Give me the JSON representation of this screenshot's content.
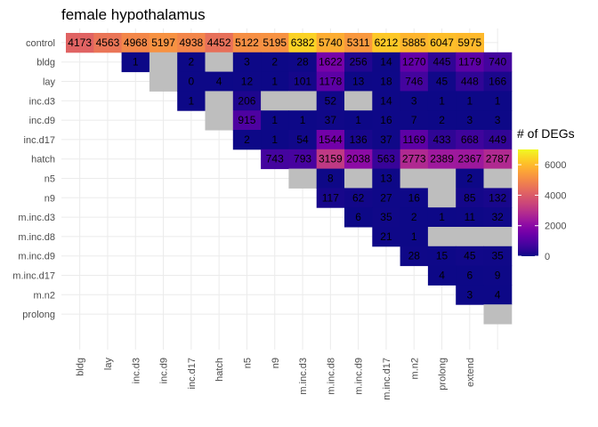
{
  "chart_data": {
    "type": "heatmap",
    "title": "female hypothalamus",
    "rows": [
      "control",
      "bldg",
      "lay",
      "inc.d3",
      "inc.d9",
      "inc.d17",
      "hatch",
      "n5",
      "n9",
      "m.inc.d3",
      "m.inc.d8",
      "m.inc.d9",
      "m.inc.d17",
      "m.n2",
      "prolong"
    ],
    "columns": [
      "control",
      "bldg",
      "lay",
      "inc.d3",
      "inc.d9",
      "inc.d17",
      "hatch",
      "n5",
      "n9",
      "m.inc.d3",
      "m.inc.d8",
      "m.inc.d9",
      "m.inc.d17",
      "m.n2",
      "prolong",
      "extend"
    ],
    "x_tick_labels": [
      "bldg",
      "lay",
      "inc.d3",
      "inc.d9",
      "inc.d17",
      "hatch",
      "n5",
      "n9",
      "m.inc.d3",
      "m.inc.d8",
      "m.inc.d9",
      "m.inc.d17",
      "m.n2",
      "prolong",
      "extend"
    ],
    "note_na": "null = grey (no value)",
    "values": [
      [
        "4173",
        "4563",
        "4968",
        "5197",
        "4938",
        "4452",
        "5122",
        "5195",
        "6382",
        "5740",
        "5311",
        "6212",
        "5885",
        "6047",
        "5975"
      ],
      [
        "1",
        null,
        "2",
        null,
        "3",
        "2",
        "28",
        "1622",
        "256",
        "14",
        "1270",
        "445",
        "1179",
        "740"
      ],
      [
        null,
        "0",
        "4",
        "12",
        "1",
        "101",
        "1178",
        "13",
        "18",
        "746",
        "45",
        "448",
        "166"
      ],
      [
        "1",
        null,
        "206",
        null,
        null,
        "52",
        null,
        "14",
        "3",
        "1",
        "1",
        "1"
      ],
      [
        null,
        "915",
        "1",
        "1",
        "37",
        "1",
        "16",
        "7",
        "2",
        "3",
        "3"
      ],
      [
        "2",
        "1",
        "54",
        "1544",
        "136",
        "37",
        "1169",
        "433",
        "668",
        "449"
      ],
      [
        "743",
        "793",
        "3159",
        "2038",
        "563",
        "2773",
        "2389",
        "2367",
        "2787"
      ],
      [
        null,
        "8",
        null,
        "13",
        null,
        null,
        "2",
        null
      ],
      [
        "117",
        "62",
        "27",
        "16",
        null,
        "85",
        "132"
      ],
      [
        "6",
        "35",
        "2",
        "1",
        "11",
        "32"
      ],
      [
        "21",
        "1",
        null,
        null,
        null
      ],
      [
        "28",
        "15",
        "45",
        "35"
      ],
      [
        "4",
        "6",
        "9"
      ],
      [
        "3",
        "4"
      ],
      [
        null
      ]
    ],
    "legend": {
      "title": "# of DEGs",
      "ticks": [
        "0",
        "2000",
        "4000",
        "6000"
      ],
      "range": [
        0,
        7000
      ]
    },
    "colors": {
      "na": "#bebebe",
      "grid": "#ebebeb",
      "scale": [
        "#0d0887",
        "#2a0593",
        "#41049d",
        "#5601a4",
        "#6a00a8",
        "#7e03a8",
        "#8f0da4",
        "#a11b9b",
        "#b12a90",
        "#bf3984",
        "#cc4778",
        "#d6556d",
        "#e16462",
        "#ea7457",
        "#f2844b",
        "#f89540",
        "#fca636",
        "#feb82c",
        "#fccd25",
        "#f7e225",
        "#f0f921"
      ]
    }
  }
}
